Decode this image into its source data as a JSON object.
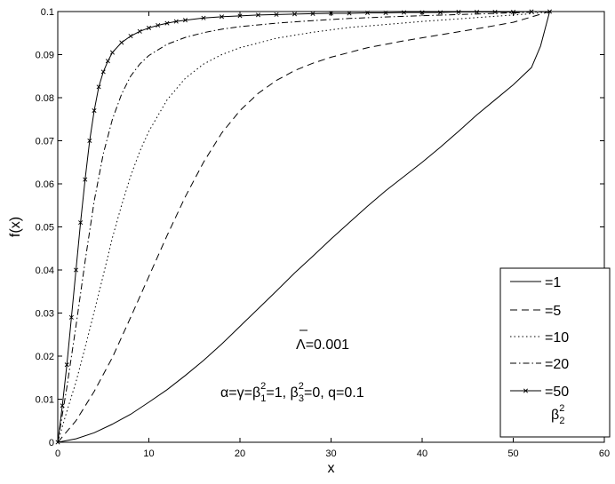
{
  "chart_data": {
    "type": "line",
    "xlabel": "x",
    "ylabel": "f(x)",
    "xlim": [
      0,
      60
    ],
    "ylim": [
      0,
      0.1
    ],
    "xticks": [
      0,
      10,
      20,
      30,
      40,
      50,
      60
    ],
    "xtick_labels": [
      "0",
      "10",
      "20",
      "30",
      "40",
      "50",
      "60"
    ],
    "yticks": [
      0,
      0.01,
      0.02,
      0.03,
      0.04,
      0.05,
      0.06,
      0.07,
      0.08,
      0.09,
      0.1
    ],
    "ytick_labels": [
      "0",
      "0.01",
      "0.02",
      "0.03",
      "0.04",
      "0.05",
      "0.06",
      "0.07",
      "0.08",
      "0.09",
      "0.1"
    ],
    "grid": false,
    "legend_position": "bottom-right",
    "legend_title": {
      "symbol": "β",
      "superscript": "2",
      "subscript": "2"
    },
    "annotations": {
      "lambda": {
        "symbol": "Λ",
        "text": "=0.001"
      },
      "params": {
        "p1": "α=γ=β",
        "p1_sup": "2",
        "p1_sub": "1",
        "p2": "=1, β",
        "p2_sup": "2",
        "p2_sub": "3",
        "p3": "=0, q=0.1"
      }
    },
    "series": [
      {
        "name": "=1",
        "style": "solid",
        "x": [
          0,
          2,
          4,
          6,
          8,
          10,
          12,
          14,
          16,
          18,
          20,
          22,
          24,
          26,
          28,
          30,
          32,
          34,
          36,
          38,
          40,
          42,
          44,
          46,
          48,
          50,
          52,
          53,
          54
        ],
        "y": [
          0,
          0.0008,
          0.0022,
          0.0042,
          0.0065,
          0.0093,
          0.0122,
          0.0155,
          0.019,
          0.0228,
          0.0269,
          0.031,
          0.0351,
          0.0393,
          0.0432,
          0.0472,
          0.051,
          0.0548,
          0.0584,
          0.0617,
          0.065,
          0.0685,
          0.0722,
          0.076,
          0.0795,
          0.083,
          0.087,
          0.092,
          0.1
        ]
      },
      {
        "name": "=5",
        "style": "dashed",
        "x": [
          0,
          2,
          4,
          6,
          8,
          10,
          12,
          14,
          16,
          18,
          20,
          22,
          24,
          26,
          28,
          30,
          34,
          38,
          42,
          46,
          50,
          54
        ],
        "y": [
          0,
          0.005,
          0.0118,
          0.0197,
          0.029,
          0.0385,
          0.048,
          0.057,
          0.065,
          0.0718,
          0.077,
          0.081,
          0.084,
          0.0863,
          0.088,
          0.0894,
          0.0916,
          0.0932,
          0.0946,
          0.096,
          0.0975,
          0.1
        ]
      },
      {
        "name": "=10",
        "style": "dotted",
        "x": [
          0,
          1,
          2,
          3,
          4,
          5,
          6,
          7,
          8,
          9,
          10,
          12,
          14,
          16,
          18,
          20,
          24,
          28,
          32,
          36,
          40,
          44,
          48,
          52,
          54
        ],
        "y": [
          0,
          0.0072,
          0.014,
          0.022,
          0.0303,
          0.0388,
          0.0475,
          0.055,
          0.0618,
          0.0675,
          0.0722,
          0.0795,
          0.0845,
          0.0878,
          0.09,
          0.0916,
          0.0938,
          0.0952,
          0.0963,
          0.097,
          0.0977,
          0.0983,
          0.0989,
          0.0995,
          0.1
        ]
      },
      {
        "name": "=20",
        "style": "dashdot",
        "x": [
          0,
          1,
          2,
          3,
          4,
          5,
          6,
          7,
          8,
          9,
          10,
          12,
          14,
          16,
          18,
          20,
          24,
          28,
          32,
          38,
          44,
          50,
          54
        ],
        "y": [
          0,
          0.0128,
          0.027,
          0.042,
          0.056,
          0.067,
          0.075,
          0.0808,
          0.085,
          0.0878,
          0.0898,
          0.0924,
          0.094,
          0.0951,
          0.0959,
          0.0965,
          0.0973,
          0.0979,
          0.0984,
          0.0989,
          0.0993,
          0.0997,
          0.1
        ]
      },
      {
        "name": "=50",
        "style": "solid-x",
        "x": [
          0,
          0.5,
          1,
          1.5,
          2,
          2.5,
          3,
          3.5,
          4,
          4.5,
          5,
          5.5,
          6,
          7,
          8,
          9,
          10,
          11,
          12,
          13,
          14,
          16,
          18,
          20,
          22,
          24,
          26,
          28,
          30,
          32,
          34,
          36,
          38,
          40,
          42,
          44,
          46,
          48,
          50,
          52,
          54
        ],
        "y": [
          0,
          0.0085,
          0.018,
          0.029,
          0.04,
          0.051,
          0.061,
          0.07,
          0.077,
          0.0825,
          0.086,
          0.0885,
          0.0905,
          0.0928,
          0.0943,
          0.0954,
          0.0962,
          0.0968,
          0.0973,
          0.0977,
          0.098,
          0.0985,
          0.0988,
          0.099,
          0.0992,
          0.0993,
          0.0994,
          0.0995,
          0.0996,
          0.0996,
          0.0997,
          0.0997,
          0.0998,
          0.0998,
          0.0998,
          0.0999,
          0.0999,
          0.0999,
          0.0999,
          0.1,
          0.1
        ]
      }
    ]
  }
}
